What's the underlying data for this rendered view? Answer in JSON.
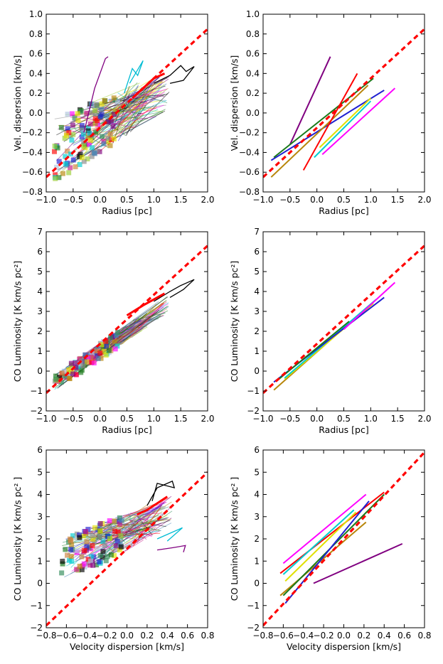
{
  "colors": {
    "fit": "#ff0000",
    "palette": [
      "#1f1fd0",
      "#00ced1",
      "#ff00ff",
      "#800080",
      "#1a7a1a",
      "#b8860b",
      "#000000",
      "#ff0000",
      "#e0e000",
      "#888888",
      "#2e8b57",
      "#c71585",
      "#4682b4",
      "#cd853f",
      "#9acd32",
      "#b0c4de"
    ]
  },
  "chart_data": [
    {
      "id": "p1",
      "type": "line",
      "panel": "top-left",
      "xlabel": "Radius [pc]",
      "ylabel": "Vel. dispersion [km/s]",
      "xlim": [
        -1.0,
        2.0
      ],
      "ylim": [
        -0.8,
        1.0
      ],
      "xticks": [
        -1.0,
        -0.5,
        0.0,
        0.5,
        1.0,
        1.5,
        2.0
      ],
      "xticklabels": [
        "−1.0",
        "−0.5",
        "0.0",
        "0.5",
        "1.0",
        "1.5",
        "2.0"
      ],
      "yticks": [
        -0.8,
        -0.6,
        -0.4,
        -0.2,
        0.0,
        0.2,
        0.4,
        0.6,
        0.8,
        1.0
      ],
      "yticklabels": [
        "−0.8",
        "−0.6",
        "−0.4",
        "−0.2",
        "0.0",
        "0.2",
        "0.4",
        "0.6",
        "0.8",
        "1.0"
      ],
      "fit_line": {
        "x": [
          -1.0,
          2.0
        ],
        "y": [
          -0.65,
          0.85
        ]
      },
      "cloud": {
        "x_range": [
          -0.85,
          1.3
        ],
        "y_at_min": [
          -0.7,
          -0.05
        ],
        "y_at_max": [
          0.05,
          0.45
        ],
        "n_lines": 140,
        "n_squares": 110
      },
      "highlight_polylines": [
        {
          "name": "black",
          "x": [
            1.0,
            1.3,
            1.5,
            1.6,
            1.75,
            1.55,
            1.3
          ],
          "y": [
            0.3,
            0.38,
            0.48,
            0.42,
            0.47,
            0.33,
            0.3
          ]
        },
        {
          "name": "cyan",
          "x": [
            0.45,
            0.6,
            0.7,
            0.8,
            0.55
          ],
          "y": [
            0.2,
            0.45,
            0.38,
            0.53,
            0.3
          ]
        },
        {
          "name": "purple",
          "x": [
            -0.3,
            -0.1,
            0.1,
            0.15
          ],
          "y": [
            -0.2,
            0.25,
            0.55,
            0.57
          ]
        },
        {
          "name": "red",
          "x": [
            0.6,
            0.8,
            1.0,
            1.2
          ],
          "y": [
            0.15,
            0.25,
            0.35,
            0.4
          ]
        }
      ]
    },
    {
      "id": "p2",
      "type": "line",
      "panel": "top-right",
      "xlabel": "Radius [pc]",
      "ylabel": "Vel. dispersion [km/s]",
      "xlim": [
        -1.0,
        2.0
      ],
      "ylim": [
        -0.8,
        1.0
      ],
      "xticks": [
        -1.0,
        -0.5,
        0.0,
        0.5,
        1.0,
        1.5,
        2.0
      ],
      "xticklabels": [
        "−1.0",
        "−0.5",
        "0.0",
        "0.5",
        "1.0",
        "1.5",
        "2.0"
      ],
      "yticks": [
        -0.8,
        -0.6,
        -0.4,
        -0.2,
        0.0,
        0.2,
        0.4,
        0.6,
        0.8,
        1.0
      ],
      "yticklabels": [
        "−0.8",
        "−0.6",
        "−0.4",
        "−0.2",
        "0.0",
        "0.2",
        "0.4",
        "0.6",
        "0.8",
        "1.0"
      ],
      "fit_line": {
        "x": [
          -1.0,
          2.0
        ],
        "y": [
          -0.65,
          0.85
        ]
      },
      "series": [
        {
          "name": "purple",
          "color": "#800080",
          "x": [
            -0.5,
            0.25
          ],
          "y": [
            -0.32,
            0.57
          ]
        },
        {
          "name": "blue",
          "color": "#1f1fd0",
          "x": [
            -0.85,
            1.25
          ],
          "y": [
            -0.48,
            0.23
          ]
        },
        {
          "name": "green",
          "color": "#1a7a1a",
          "x": [
            -0.8,
            1.05
          ],
          "y": [
            -0.45,
            0.35
          ]
        },
        {
          "name": "goldenrod",
          "color": "#b8860b",
          "x": [
            -0.85,
            0.95
          ],
          "y": [
            -0.65,
            0.28
          ]
        },
        {
          "name": "magenta",
          "color": "#ff00ff",
          "x": [
            0.1,
            1.45
          ],
          "y": [
            -0.42,
            0.25
          ]
        },
        {
          "name": "cyan",
          "color": "#00ced1",
          "x": [
            -0.05,
            1.0
          ],
          "y": [
            -0.45,
            0.12
          ]
        },
        {
          "name": "yellow",
          "color": "#e0e000",
          "x": [
            0.05,
            1.0
          ],
          "y": [
            -0.35,
            0.15
          ]
        },
        {
          "name": "red",
          "color": "#ff0000",
          "x": [
            -0.25,
            0.75
          ],
          "y": [
            -0.58,
            0.4
          ]
        }
      ]
    },
    {
      "id": "p3",
      "type": "line",
      "panel": "middle-left",
      "xlabel": "Radius [pc]",
      "ylabel": "CO Luminosity [K km/s pc²]",
      "xlim": [
        -1.0,
        2.0
      ],
      "ylim": [
        -2,
        7
      ],
      "xticks": [
        -1.0,
        -0.5,
        0.0,
        0.5,
        1.0,
        1.5,
        2.0
      ],
      "xticklabels": [
        "−1.0",
        "−0.5",
        "0.0",
        "0.5",
        "1.0",
        "1.5",
        "2.0"
      ],
      "yticks": [
        -2,
        -1,
        0,
        1,
        2,
        3,
        4,
        5,
        6,
        7
      ],
      "yticklabels": [
        "−2",
        "−1",
        "0",
        "1",
        "2",
        "3",
        "4",
        "5",
        "6",
        "7"
      ],
      "fit_line": {
        "x": [
          -1.0,
          2.0
        ],
        "y": [
          -1.1,
          6.3
        ]
      },
      "cloud": {
        "x_range": [
          -0.85,
          1.3
        ],
        "y_at_min": [
          -1.0,
          -0.2
        ],
        "y_at_max": [
          3.0,
          3.9
        ],
        "n_lines": 140,
        "n_squares": 80
      },
      "highlight_polylines": [
        {
          "name": "black",
          "x": [
            1.0,
            1.3,
            1.5,
            1.75,
            1.55,
            1.3
          ],
          "y": [
            3.5,
            4.0,
            4.3,
            4.6,
            4.1,
            3.7
          ]
        },
        {
          "name": "red",
          "x": [
            0.5,
            0.8,
            1.0,
            1.2
          ],
          "y": [
            2.8,
            3.3,
            3.6,
            3.9
          ]
        }
      ]
    },
    {
      "id": "p4",
      "type": "line",
      "panel": "middle-right",
      "xlabel": "Radius [pc]",
      "ylabel": "CO Luminosity [K km/s pc²]",
      "xlim": [
        -1.0,
        2.0
      ],
      "ylim": [
        -2,
        7
      ],
      "xticks": [
        -1.0,
        -0.5,
        0.0,
        0.5,
        1.0,
        1.5,
        2.0
      ],
      "xticklabels": [
        "−1.0",
        "−0.5",
        "0.0",
        "0.5",
        "1.0",
        "1.5",
        "2.0"
      ],
      "yticks": [
        -2,
        -1,
        0,
        1,
        2,
        3,
        4,
        5,
        6,
        7
      ],
      "yticklabels": [
        "−2",
        "−1",
        "0",
        "1",
        "2",
        "3",
        "4",
        "5",
        "6",
        "7"
      ],
      "fit_line": {
        "x": [
          -1.0,
          2.0
        ],
        "y": [
          -1.1,
          6.3
        ]
      },
      "series": [
        {
          "name": "goldenrod",
          "color": "#b8860b",
          "x": [
            -0.8,
            1.0
          ],
          "y": [
            -0.95,
            3.35
          ]
        },
        {
          "name": "yellow",
          "color": "#e0e000",
          "x": [
            -0.6,
            1.05
          ],
          "y": [
            -0.4,
            3.4
          ]
        },
        {
          "name": "cyan",
          "color": "#00ced1",
          "x": [
            -0.6,
            1.1
          ],
          "y": [
            -0.35,
            3.6
          ]
        },
        {
          "name": "blue",
          "color": "#1f1fd0",
          "x": [
            -0.8,
            1.25
          ],
          "y": [
            -0.55,
            3.7
          ]
        },
        {
          "name": "magenta",
          "color": "#ff00ff",
          "x": [
            0.5,
            1.45
          ],
          "y": [
            2.1,
            4.45
          ]
        },
        {
          "name": "green",
          "color": "#1a7a1a",
          "x": [
            -0.75,
            0.6
          ],
          "y": [
            -0.5,
            2.5
          ]
        }
      ]
    },
    {
      "id": "p5",
      "type": "line",
      "panel": "bottom-left",
      "xlabel": "Velocity dispersion [km/s]",
      "ylabel": "CO Luminosity [K km/s pc² ]",
      "xlim": [
        -0.8,
        0.8
      ],
      "ylim": [
        -2,
        6
      ],
      "xticks": [
        -0.8,
        -0.6,
        -0.4,
        -0.2,
        0.0,
        0.2,
        0.4,
        0.6,
        0.8
      ],
      "xticklabels": [
        "−0.8",
        "−0.6",
        "−0.4",
        "−0.2",
        "0.0",
        "0.2",
        "0.4",
        "0.6",
        "0.8"
      ],
      "yticks": [
        -2,
        -1,
        0,
        1,
        2,
        3,
        4,
        5,
        6
      ],
      "yticklabels": [
        "−2",
        "−1",
        "0",
        "1",
        "2",
        "3",
        "4",
        "5",
        "6"
      ],
      "fit_line": {
        "x": [
          -0.8,
          0.8
        ],
        "y": [
          -1.9,
          5.0
        ]
      },
      "cloud": {
        "x_range": [
          -0.65,
          0.45
        ],
        "y_at_min": [
          0.0,
          2.0
        ],
        "y_at_max": [
          2.5,
          4.0
        ],
        "n_lines": 140,
        "n_squares": 100
      },
      "highlight_polylines": [
        {
          "name": "black",
          "x": [
            0.2,
            0.3,
            0.45,
            0.47,
            0.3,
            0.25
          ],
          "y": [
            3.5,
            4.3,
            4.6,
            4.3,
            4.5,
            3.7
          ]
        },
        {
          "name": "cyan",
          "x": [
            0.3,
            0.45,
            0.55,
            0.4
          ],
          "y": [
            2.0,
            2.3,
            2.5,
            1.9
          ]
        },
        {
          "name": "purple",
          "x": [
            0.3,
            0.45,
            0.58,
            0.56
          ],
          "y": [
            1.5,
            1.6,
            1.7,
            1.4
          ]
        },
        {
          "name": "red",
          "x": [
            0.1,
            0.2,
            0.3,
            0.4
          ],
          "y": [
            3.1,
            3.3,
            3.6,
            3.9
          ]
        }
      ]
    },
    {
      "id": "p6",
      "type": "line",
      "panel": "bottom-right",
      "xlabel": "Velocity dispersion [km/s]",
      "ylabel": "CO Luminosity [K km/s pc² ]",
      "xlim": [
        -0.8,
        0.8
      ],
      "ylim": [
        -2,
        6
      ],
      "xticks": [
        -0.8,
        -0.6,
        -0.4,
        -0.2,
        0.0,
        0.2,
        0.4,
        0.6,
        0.8
      ],
      "xticklabels": [
        "−0.8",
        "−0.6",
        "−0.4",
        "−0.2",
        "0.0",
        "0.2",
        "0.4",
        "0.6",
        "0.8"
      ],
      "yticks": [
        -2,
        -1,
        0,
        1,
        2,
        3,
        4,
        5,
        6
      ],
      "yticklabels": [
        "−2",
        "−1",
        "0",
        "1",
        "2",
        "3",
        "4",
        "5",
        "6"
      ],
      "fit_line": {
        "x": [
          -0.8,
          0.8
        ],
        "y": [
          -1.9,
          5.9
        ]
      },
      "series": [
        {
          "name": "magenta",
          "color": "#ff00ff",
          "x": [
            -0.6,
            0.22
          ],
          "y": [
            0.9,
            4.0
          ]
        },
        {
          "name": "red",
          "color": "#ff0000",
          "x": [
            -0.63,
            0.4
          ],
          "y": [
            0.45,
            4.1
          ]
        },
        {
          "name": "cyan",
          "color": "#00ced1",
          "x": [
            -0.6,
            0.1
          ],
          "y": [
            0.4,
            3.3
          ]
        },
        {
          "name": "yellow",
          "color": "#e0e000",
          "x": [
            -0.58,
            0.12
          ],
          "y": [
            0.1,
            3.2
          ]
        },
        {
          "name": "goldenrod",
          "color": "#b8860b",
          "x": [
            -0.63,
            0.22
          ],
          "y": [
            -0.55,
            2.75
          ]
        },
        {
          "name": "green",
          "color": "#1a7a1a",
          "x": [
            -0.6,
            0.4
          ],
          "y": [
            -0.55,
            4.0
          ]
        },
        {
          "name": "blue",
          "color": "#1f1fd0",
          "x": [
            -0.58,
            0.25
          ],
          "y": [
            -0.9,
            3.7
          ]
        },
        {
          "name": "purple",
          "color": "#800080",
          "x": [
            -0.3,
            0.58
          ],
          "y": [
            0.0,
            1.78
          ]
        }
      ]
    }
  ]
}
